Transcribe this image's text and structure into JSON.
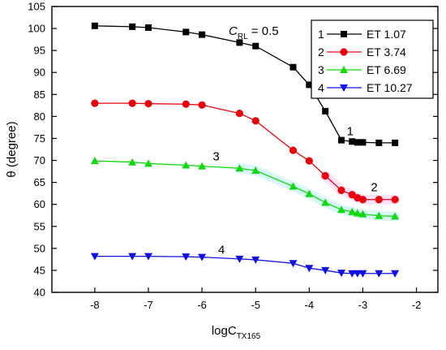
{
  "chart_data": {
    "type": "line",
    "xlabel": "logC",
    "xlabel_sub": "TX165",
    "ylabel": "θ (degree)",
    "xlim": [
      -8.8,
      -1.6
    ],
    "ylim": [
      40,
      105
    ],
    "x_ticks": [
      -8,
      -7,
      -6,
      -5,
      -4,
      -3,
      -2
    ],
    "y_ticks": [
      40,
      45,
      50,
      55,
      60,
      65,
      70,
      75,
      80,
      85,
      90,
      95,
      100,
      105
    ],
    "grid": false,
    "legend_position": "top-right",
    "annotation": {
      "main": "C",
      "sub": "RL",
      "rest": " = 0.5"
    },
    "series": [
      {
        "name": "ET 1.07",
        "legend_num": "1",
        "curve_label": "1",
        "color": "#000000",
        "marker": "square",
        "x": [
          -8,
          -7.3,
          -7,
          -6.3,
          -6,
          -5.3,
          -5,
          -4.3,
          -4,
          -3.7,
          -3.4,
          -3.2,
          -3.1,
          -3,
          -2.7,
          -2.4
        ],
        "y": [
          100.6,
          100.4,
          100.2,
          99.2,
          98.6,
          96.8,
          96.0,
          91.2,
          87.2,
          81.2,
          74.6,
          74.3,
          74.1,
          74.1,
          74.0,
          74.0
        ]
      },
      {
        "name": "ET 3.74",
        "legend_num": "2",
        "curve_label": "2",
        "color": "#e8000b",
        "marker": "circle",
        "x": [
          -8,
          -7.3,
          -7,
          -6.3,
          -6,
          -5.3,
          -5,
          -4.3,
          -4,
          -3.7,
          -3.4,
          -3.2,
          -3.1,
          -3,
          -2.7,
          -2.4
        ],
        "y": [
          83.0,
          83.0,
          82.9,
          82.8,
          82.6,
          80.7,
          79.0,
          72.3,
          69.9,
          66.5,
          63.2,
          62.2,
          61.5,
          61.1,
          61.1,
          61.1
        ]
      },
      {
        "name": "ET 6.69",
        "legend_num": "3",
        "curve_label": "3",
        "color": "#11d911",
        "marker": "triangle-up",
        "x": [
          -8,
          -7.3,
          -7,
          -6.3,
          -6,
          -5.3,
          -5,
          -4.3,
          -4,
          -3.7,
          -3.4,
          -3.2,
          -3.1,
          -3,
          -2.7,
          -2.4
        ],
        "y": [
          69.9,
          69.6,
          69.3,
          68.9,
          68.7,
          68.2,
          67.7,
          64.1,
          62.4,
          60.4,
          58.8,
          58.3,
          58.0,
          57.8,
          57.4,
          57.3
        ]
      },
      {
        "name": "ET 10.27",
        "legend_num": "4",
        "curve_label": "4",
        "color": "#1010e0",
        "marker": "triangle-down",
        "x": [
          -8,
          -7.3,
          -7,
          -6.3,
          -6,
          -5.3,
          -5,
          -4.3,
          -4,
          -3.7,
          -3.4,
          -3.2,
          -3.1,
          -3,
          -2.7,
          -2.4
        ],
        "y": [
          48.2,
          48.2,
          48.2,
          48.1,
          48.0,
          47.6,
          47.4,
          46.6,
          45.5,
          45.0,
          44.4,
          44.3,
          44.3,
          44.3,
          44.3,
          44.3
        ]
      }
    ]
  }
}
